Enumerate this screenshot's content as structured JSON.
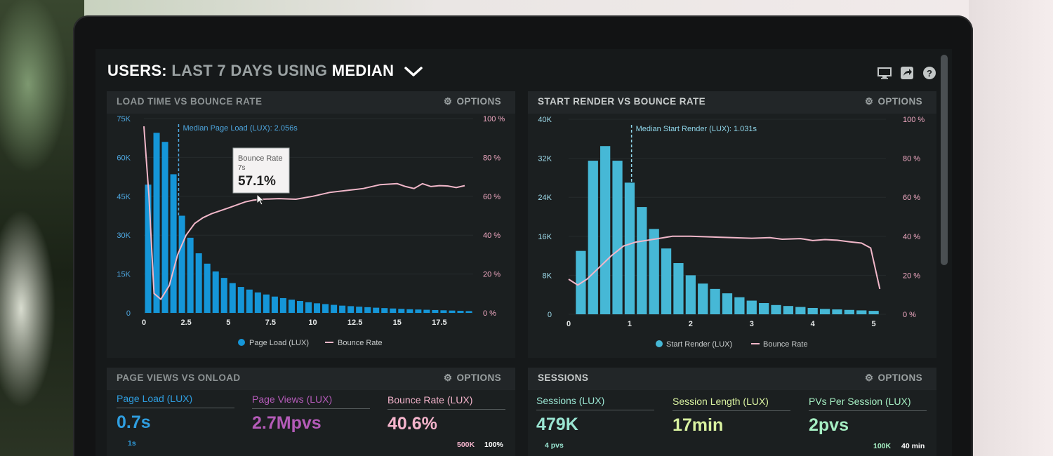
{
  "header": {
    "title_part1": "USERS:",
    "title_part2": "LAST 7 DAYS",
    "title_part3": "USING",
    "title_part4": "MEDIAN",
    "icons": [
      "monitor-icon",
      "share-icon",
      "help-icon"
    ]
  },
  "colors": {
    "bar_blue": "#1596d8",
    "bar_teal": "#46b8d6",
    "bounce_line": "#f1b7c9",
    "axis_text_left": "#4ea7e0",
    "axis_text_right": "#f0a9c2"
  },
  "panels": {
    "load_time": {
      "title": "LOAD TIME VS BOUNCE RATE",
      "options_label": "OPTIONS",
      "median_label": "Median Page Load (LUX): 2.056s",
      "tooltip": {
        "title": "Bounce Rate",
        "sub": "7s",
        "value": "57.1%"
      },
      "legend": [
        "Page Load (LUX)",
        "Bounce Rate"
      ]
    },
    "start_render": {
      "title": "START RENDER VS BOUNCE RATE",
      "options_label": "OPTIONS",
      "median_label": "Median Start Render (LUX): 1.031s",
      "legend": [
        "Start Render (LUX)",
        "Bounce Rate"
      ]
    },
    "page_views": {
      "title": "PAGE VIEWS VS ONLOAD",
      "options_label": "OPTIONS",
      "metrics": [
        {
          "label": "Page Load (LUX)",
          "value": "0.7s",
          "sub": "1s"
        },
        {
          "label": "Page Views (LUX)",
          "value": "2.7Mpvs"
        },
        {
          "label": "Bounce Rate (LUX)",
          "value": "40.6%",
          "sub1": "500K",
          "sub2": "100%"
        }
      ]
    },
    "sessions": {
      "title": "SESSIONS",
      "options_label": "OPTIONS",
      "metrics": [
        {
          "label": "Sessions (LUX)",
          "value": "479K",
          "sub": "4 pvs"
        },
        {
          "label": "Session Length (LUX)",
          "value": "17min"
        },
        {
          "label": "PVs Per Session (LUX)",
          "value": "2pvs",
          "sub1": "100K",
          "sub2": "40 min"
        }
      ]
    }
  },
  "chart_data": [
    {
      "type": "bar",
      "title": "LOAD TIME VS BOUNCE RATE",
      "x_ticks": [
        "0",
        "2.5",
        "5",
        "7.5",
        "10",
        "12.5",
        "15",
        "17.5"
      ],
      "y_ticks_left": [
        "75K",
        "60K",
        "45K",
        "30K",
        "15K",
        "0"
      ],
      "y_ticks_right": [
        "100 %",
        "80 %",
        "60 %",
        "40 %",
        "20 %",
        "0 %"
      ],
      "ylim_left": [
        0,
        75000
      ],
      "ylim_right": [
        0,
        100
      ],
      "xlim": [
        0,
        19.5
      ],
      "median_x": 2.056,
      "series": [
        {
          "name": "Page Load (LUX)",
          "kind": "bar",
          "x": [
            0.25,
            0.75,
            1.25,
            1.75,
            2.25,
            2.75,
            3.25,
            3.75,
            4.25,
            4.75,
            5.25,
            5.75,
            6.25,
            6.75,
            7.25,
            7.75,
            8.25,
            8.75,
            9.25,
            9.75,
            10.25,
            10.75,
            11.25,
            11.75,
            12.25,
            12.75,
            13.25,
            13.75,
            14.25,
            14.75,
            15.25,
            15.75,
            16.25,
            16.75,
            17.25,
            17.75,
            18.25,
            18.75,
            19.25
          ],
          "values": [
            49500,
            69500,
            66000,
            53500,
            37500,
            29000,
            23000,
            19000,
            16000,
            13500,
            11500,
            10000,
            9000,
            7900,
            7100,
            6300,
            5700,
            5100,
            4600,
            4100,
            3700,
            3400,
            3100,
            2800,
            2600,
            2400,
            2200,
            2000,
            1850,
            1700,
            1550,
            1400,
            1300,
            1200,
            1100,
            1000,
            900,
            800,
            700
          ]
        },
        {
          "name": "Bounce Rate",
          "kind": "line",
          "x": [
            0,
            0.3,
            0.6,
            1.0,
            1.5,
            2.0,
            2.5,
            3,
            3.5,
            4,
            5,
            6,
            6.5,
            7,
            8,
            9,
            10,
            11,
            12,
            13,
            14,
            15,
            15.5,
            16,
            16.5,
            17,
            17.5,
            18,
            18.5,
            19
          ],
          "values": [
            96,
            60,
            10,
            7,
            14,
            30,
            40,
            46,
            49,
            51,
            54,
            57.1,
            58,
            58.5,
            58.8,
            58.5,
            60,
            62,
            63,
            64,
            66,
            66.5,
            65,
            64,
            66.5,
            65,
            65.5,
            65.3,
            64.5,
            65.5
          ]
        }
      ]
    },
    {
      "type": "bar",
      "title": "START RENDER VS BOUNCE RATE",
      "x_ticks": [
        "0",
        "1",
        "2",
        "3",
        "4",
        "5"
      ],
      "y_ticks_left": [
        "40K",
        "32K",
        "24K",
        "16K",
        "8K",
        "0"
      ],
      "y_ticks_right": [
        "100 %",
        "80 %",
        "60 %",
        "40 %",
        "20 %",
        "0 %"
      ],
      "ylim_left": [
        0,
        40000
      ],
      "ylim_right": [
        0,
        100
      ],
      "xlim": [
        0,
        5.2
      ],
      "median_x": 1.031,
      "series": [
        {
          "name": "Start Render (LUX)",
          "kind": "bar",
          "x": [
            0.2,
            0.4,
            0.6,
            0.8,
            1.0,
            1.2,
            1.4,
            1.6,
            1.8,
            2.0,
            2.2,
            2.4,
            2.6,
            2.8,
            3.0,
            3.2,
            3.4,
            3.6,
            3.8,
            4.0,
            4.2,
            4.4,
            4.6,
            4.8,
            5.0
          ],
          "values": [
            13000,
            31500,
            34500,
            31500,
            27000,
            22000,
            17500,
            13500,
            10500,
            8000,
            6300,
            5200,
            4300,
            3500,
            2800,
            2300,
            1900,
            1700,
            1500,
            1300,
            1100,
            1000,
            900,
            800,
            700
          ]
        },
        {
          "name": "Bounce Rate",
          "kind": "line",
          "x": [
            0,
            0.15,
            0.3,
            0.5,
            0.7,
            0.9,
            1.1,
            1.3,
            1.5,
            1.7,
            2,
            2.5,
            3,
            3.3,
            3.5,
            3.8,
            4.0,
            4.2,
            4.4,
            4.6,
            4.8,
            4.95,
            5.1
          ],
          "values": [
            18,
            15,
            18,
            24,
            30,
            35,
            37,
            38,
            39,
            40,
            40,
            39.5,
            39,
            39.3,
            38.5,
            38.8,
            37.8,
            38.3,
            38,
            37.2,
            36.5,
            34,
            13
          ]
        }
      ]
    }
  ]
}
